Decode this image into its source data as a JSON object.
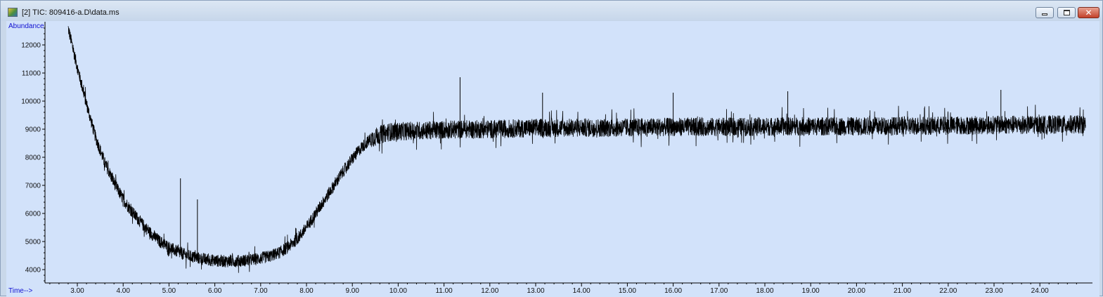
{
  "window": {
    "title": "[2] TIC: 809416-a.D\\data.ms",
    "icon": "chemstation-app-icon",
    "buttons": [
      "minimize",
      "maximize",
      "close"
    ]
  },
  "colors": {
    "plot_background": "#d2e2fa",
    "trace": "#000000",
    "axis_label": "#1010d0"
  },
  "chart_data": {
    "type": "line",
    "title": "",
    "xlabel": "Time-->",
    "ylabel": "Abundance",
    "xlim": [
      2.3,
      25.1
    ],
    "ylim": [
      3550,
      12700
    ],
    "xticks": [
      "3.00",
      "4.00",
      "5.00",
      "6.00",
      "7.00",
      "8.00",
      "9.00",
      "10.00",
      "11.00",
      "12.00",
      "13.00",
      "14.00",
      "15.00",
      "16.00",
      "17.00",
      "18.00",
      "19.00",
      "20.00",
      "21.00",
      "22.00",
      "23.00",
      "24.00"
    ],
    "yticks": [
      "4000",
      "5000",
      "6000",
      "7000",
      "8000",
      "9000",
      "10000",
      "11000",
      "12000"
    ],
    "grid": false,
    "series": [
      {
        "x": [
          2.8,
          3.0,
          3.2,
          3.4,
          3.6,
          3.8,
          4.0,
          4.2,
          4.4,
          4.6,
          4.8,
          5.0,
          5.2,
          5.4,
          5.6,
          5.8,
          6.0,
          6.2,
          6.4,
          6.6,
          6.8,
          7.0,
          7.2,
          7.4,
          7.6,
          7.8,
          8.0,
          8.2,
          8.4,
          8.6,
          8.8,
          9.0,
          9.2,
          9.4,
          9.6,
          9.8,
          10.0,
          10.5,
          11.0,
          11.5,
          12.0,
          12.5,
          13.0,
          13.5,
          14.0,
          14.5,
          15.0,
          15.5,
          16.0,
          16.5,
          17.0,
          17.5,
          18.0,
          18.5,
          19.0,
          19.5,
          20.0,
          20.5,
          21.0,
          21.5,
          22.0,
          22.5,
          23.0,
          23.5,
          24.0,
          24.5,
          25.0
        ],
        "y": [
          12600,
          11200,
          9900,
          8700,
          7800,
          7100,
          6500,
          6050,
          5650,
          5300,
          5000,
          4800,
          4620,
          4500,
          4420,
          4360,
          4320,
          4300,
          4300,
          4320,
          4350,
          4400,
          4480,
          4600,
          4800,
          5100,
          5500,
          6000,
          6500,
          7000,
          7500,
          7950,
          8350,
          8650,
          8800,
          8900,
          8920,
          8950,
          8980,
          9000,
          9000,
          9020,
          9050,
          9050,
          9050,
          9050,
          9060,
          9070,
          9080,
          9080,
          9080,
          9080,
          9090,
          9100,
          9100,
          9100,
          9100,
          9110,
          9120,
          9120,
          9130,
          9140,
          9150,
          9160,
          9160,
          9170,
          9170
        ],
        "spikes": [
          {
            "x": 5.25,
            "y": 7250
          },
          {
            "x": 5.62,
            "y": 6500
          },
          {
            "x": 11.35,
            "y": 10850
          },
          {
            "x": 13.15,
            "y": 10300
          },
          {
            "x": 16.0,
            "y": 10300
          },
          {
            "x": 18.5,
            "y": 10350
          },
          {
            "x": 23.15,
            "y": 10400
          }
        ]
      }
    ]
  }
}
